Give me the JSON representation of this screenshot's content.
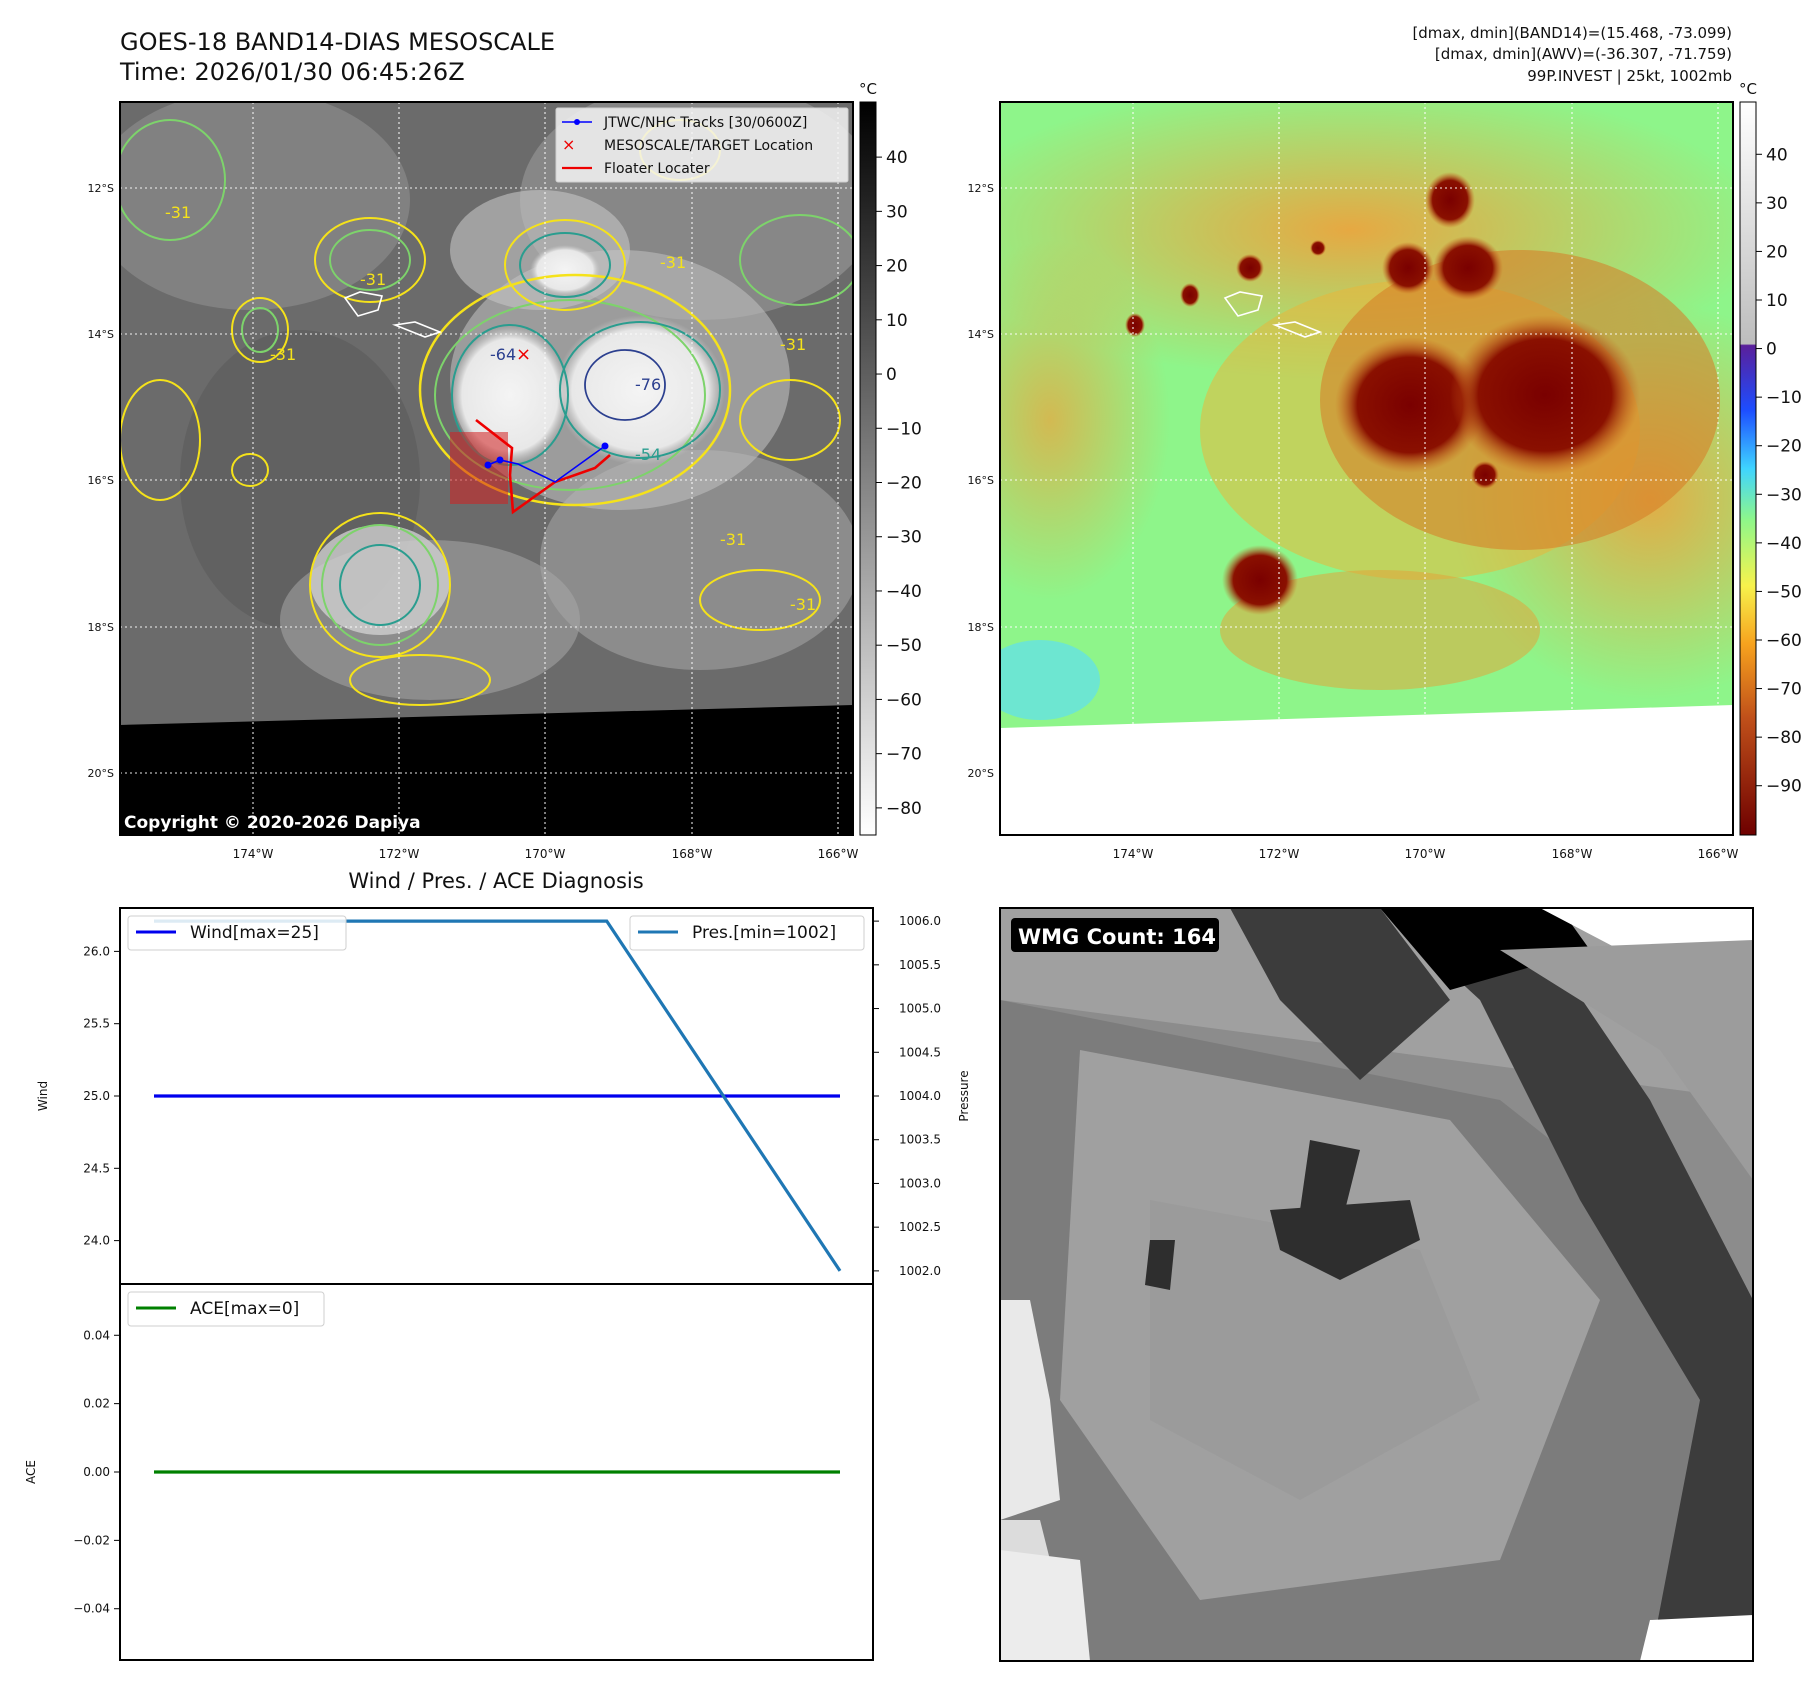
{
  "header": {
    "title_line1": "GOES-18 BAND14-DIAS MESOSCALE",
    "title_line2": "Time: 2026/01/30 06:45:26Z",
    "stats_line1": "[dmax, dmin](BAND14)=(15.468, -73.099)",
    "stats_line2": "[dmax, dmin](AWV)=(-36.307, -71.759)",
    "stats_line3": "99P.INVEST | 25kt, 1002mb"
  },
  "colors": {
    "wind": "#0000ee",
    "pressure": "#1f77b4",
    "ace": "#008000",
    "track": "#0000ff",
    "floater": "#ee0000",
    "target": "#ee0000",
    "contour_yellow": "#f5e21a",
    "contour_green": "#7dd36b",
    "contour_teal": "#2a9d8f",
    "contour_navy": "#2b3f8f"
  },
  "map_axes": {
    "lat_labels": [
      "12°S",
      "14°S",
      "16°S",
      "18°S",
      "20°S"
    ],
    "lon_labels": [
      "174°W",
      "172°W",
      "170°W",
      "168°W",
      "166°W"
    ],
    "grid": true
  },
  "ir_panel": {
    "colorbar_unit": "°C",
    "colorbar_ticks": [
      "40",
      "30",
      "20",
      "10",
      "0",
      "−10",
      "−20",
      "−30",
      "−40",
      "−50",
      "−60",
      "−70",
      "−80"
    ],
    "contour_labels": [
      "-31",
      "-31",
      "-31",
      "-31",
      "-31",
      "-64",
      "-76",
      "-54",
      "-31",
      "-31"
    ],
    "copyright": "Copyright © 2020-2026 Dapiya",
    "legend": [
      {
        "label": "JTWC/NHC Tracks [30/0600Z]",
        "symbol": "track"
      },
      {
        "label": "MESOSCALE/TARGET Location",
        "symbol": "target"
      },
      {
        "label": "Floater Locater",
        "symbol": "floater"
      }
    ]
  },
  "awv_panel": {
    "colorbar_unit": "°C",
    "colorbar_ticks": [
      "40",
      "30",
      "20",
      "10",
      "0",
      "−10",
      "−20",
      "−30",
      "−40",
      "−50",
      "−60",
      "−70",
      "−80",
      "−90"
    ]
  },
  "wmg_panel": {
    "label": "WMG Count: 164"
  },
  "chart_data": [
    {
      "type": "line",
      "title": "Wind / Pres. / ACE Diagnosis",
      "ylabel": "Wind",
      "ylim": [
        23.7,
        26.3
      ],
      "yticks": [
        "26.0",
        "25.5",
        "25.0",
        "24.5",
        "24.0"
      ],
      "series": [
        {
          "name": "Wind[max=25]",
          "x": [
            0,
            1
          ],
          "values": [
            25,
            25
          ]
        }
      ],
      "legend": "upper left",
      "grid": false
    },
    {
      "type": "line",
      "ylabel": "Pressure",
      "ylim": [
        1001.85,
        1006.15
      ],
      "yticks": [
        "1006.0",
        "1005.5",
        "1005.0",
        "1004.5",
        "1004.0",
        "1003.5",
        "1003.0",
        "1002.5",
        "1002.0"
      ],
      "series": [
        {
          "name": "Pres.[min=1002]",
          "x": [
            0,
            0.66,
            1
          ],
          "values": [
            1006,
            1006,
            1002
          ]
        }
      ],
      "legend": "upper right",
      "grid": false
    },
    {
      "type": "line",
      "ylabel": "ACE",
      "ylim": [
        -0.055,
        0.055
      ],
      "yticks": [
        "0.04",
        "0.02",
        "0.00",
        "−0.02",
        "−0.04"
      ],
      "series": [
        {
          "name": "ACE[max=0]",
          "x": [
            0,
            1
          ],
          "values": [
            0,
            0
          ]
        }
      ],
      "legend": "upper left",
      "grid": false
    }
  ]
}
